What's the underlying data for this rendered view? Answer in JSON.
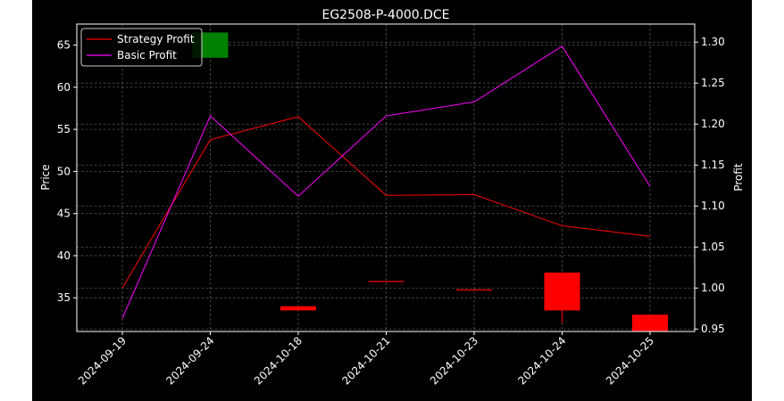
{
  "chart_data": {
    "type": "candlestick+line",
    "title": "EG2508-P-4000.DCE",
    "ylabel": "Price",
    "y2label": "Profit",
    "categories": [
      "2024-09-19",
      "2024-09-24",
      "2024-10-18",
      "2024-10-21",
      "2024-10-23",
      "2024-10-24",
      "2024-10-25"
    ],
    "ylim": [
      31.0,
      67.5
    ],
    "y2lim": [
      0.947,
      1.322
    ],
    "yticks": [
      35,
      40,
      45,
      50,
      55,
      60,
      65
    ],
    "y2ticks": [
      0.95,
      1.0,
      1.05,
      1.1,
      1.15,
      1.2,
      1.25,
      1.3
    ],
    "y2tick_labels": [
      "0.95",
      "1.00",
      "1.05",
      "1.10",
      "1.15",
      "1.20",
      "1.25",
      "1.30"
    ],
    "candles": [
      {
        "x": "2024-09-24",
        "open": 63.5,
        "close": 66.5,
        "high": 66.5,
        "low": 63.5,
        "color": "#008000"
      },
      {
        "x": "2024-10-18",
        "open": 34.0,
        "close": 33.5,
        "high": 34.0,
        "low": 33.5,
        "color": "#ff0000"
      },
      {
        "x": "2024-10-21",
        "open": 37.0,
        "close": 37.0,
        "high": 37.0,
        "low": 37.0,
        "color": "#ff0000"
      },
      {
        "x": "2024-10-23",
        "open": 36.0,
        "close": 36.0,
        "high": 36.0,
        "low": 36.0,
        "color": "#ff0000"
      },
      {
        "x": "2024-10-24",
        "open": 38.0,
        "close": 33.5,
        "high": 38.0,
        "low": 32.0,
        "color": "#ff0000"
      },
      {
        "x": "2024-10-25",
        "open": 33.0,
        "close": 31.0,
        "high": 33.0,
        "low": 31.0,
        "color": "#ff0000"
      }
    ],
    "series": [
      {
        "name": "Strategy Profit",
        "axis": "right",
        "color": "#ff0000",
        "values": [
          1.0,
          1.181,
          1.209,
          1.113,
          1.114,
          1.076,
          1.063
        ]
      },
      {
        "name": "Basic Profit",
        "axis": "right",
        "color": "#ff00ff",
        "values": [
          0.963,
          1.21,
          1.112,
          1.21,
          1.227,
          1.295,
          1.124
        ]
      }
    ],
    "legend": "top-left",
    "grid": true,
    "colors": {
      "background": "#000000",
      "axes": "#ffffff",
      "grid": "#7f7f7f"
    }
  }
}
